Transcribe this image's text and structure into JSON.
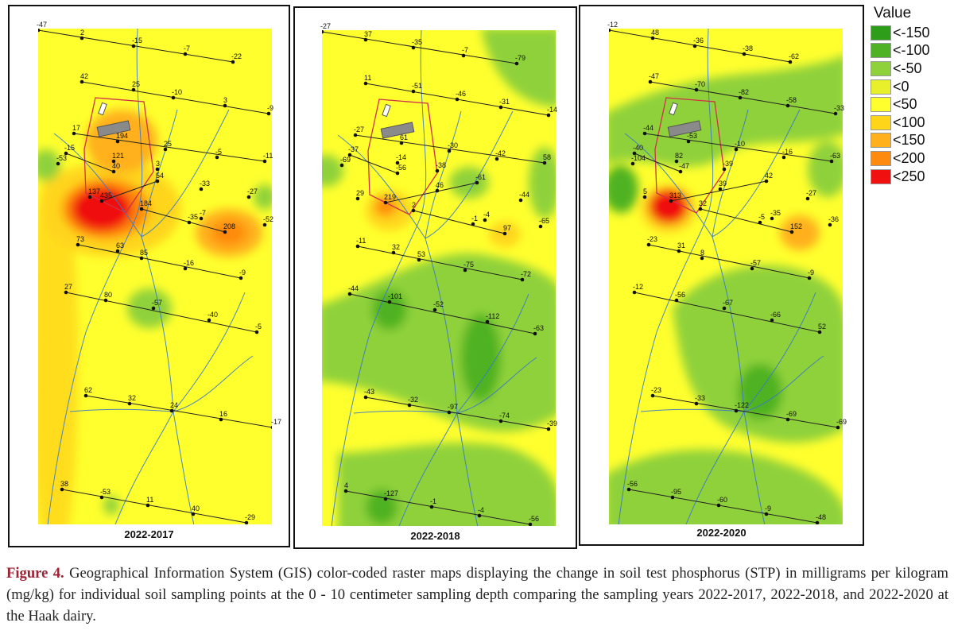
{
  "legend": {
    "title": "Value",
    "items": [
      {
        "label": "<-150",
        "color": "#2e9e1a"
      },
      {
        "label": "<-100",
        "color": "#4fb224"
      },
      {
        "label": "<-50",
        "color": "#8fd13a"
      },
      {
        "label": "<0",
        "color": "#e8f02c"
      },
      {
        "label": "<50",
        "color": "#ffff2e"
      },
      {
        "label": "<100",
        "color": "#ffd51a"
      },
      {
        "label": "<150",
        "color": "#ffb01a"
      },
      {
        "label": "<200",
        "color": "#ff8a10"
      },
      {
        "label": "<250",
        "color": "#f01010"
      }
    ]
  },
  "caption": {
    "figure_label": "Figure 4.",
    "text": "Geographical Information System (GIS) color-coded raster maps displaying the change in soil test phosphorus (STP) in milligrams per kilogram (mg/kg) for individual soil sampling points at the 0 - 10 centimeter sampling depth comparing the sampling years 2022-2017, 2022-2018, and 2022-2020 at the Haak dairy."
  },
  "maps": [
    {
      "title": "2022-2017",
      "points": [
        {
          "label": "-47"
        },
        {
          "label": "2"
        },
        {
          "label": "-15"
        },
        {
          "label": "-7"
        },
        {
          "label": "-22"
        },
        {
          "label": "42"
        },
        {
          "label": "25"
        },
        {
          "label": "-10"
        },
        {
          "label": "3"
        },
        {
          "label": "-9"
        },
        {
          "label": "17"
        },
        {
          "label": "194"
        },
        {
          "label": "25"
        },
        {
          "label": "-5"
        },
        {
          "label": "-11"
        },
        {
          "label": "-15"
        },
        {
          "label": "121"
        },
        {
          "label": "3"
        },
        {
          "label": "-53"
        },
        {
          "label": "40"
        },
        {
          "label": "54"
        },
        {
          "label": "-33"
        },
        {
          "label": "-27"
        },
        {
          "label": "137"
        },
        {
          "label": "435"
        },
        {
          "label": "184"
        },
        {
          "label": "-7"
        },
        {
          "label": "-52"
        },
        {
          "label": "-35"
        },
        {
          "label": "208"
        },
        {
          "label": "73"
        },
        {
          "label": "63"
        },
        {
          "label": "85"
        },
        {
          "label": "-16"
        },
        {
          "label": "-9"
        },
        {
          "label": "27"
        },
        {
          "label": "80"
        },
        {
          "label": "-57"
        },
        {
          "label": "-40"
        },
        {
          "label": "-5"
        },
        {
          "label": "62"
        },
        {
          "label": "32"
        },
        {
          "label": "24"
        },
        {
          "label": "16"
        },
        {
          "label": "-17"
        },
        {
          "label": "38"
        },
        {
          "label": "-53"
        },
        {
          "label": "11"
        },
        {
          "label": "40"
        },
        {
          "label": "-29"
        }
      ]
    },
    {
      "title": "2022-2018",
      "points": [
        {
          "label": "-27"
        },
        {
          "label": "37"
        },
        {
          "label": "-35"
        },
        {
          "label": "-7"
        },
        {
          "label": "-79"
        },
        {
          "label": "11"
        },
        {
          "label": "-51"
        },
        {
          "label": "-46"
        },
        {
          "label": "-31"
        },
        {
          "label": "-14"
        },
        {
          "label": "-27"
        },
        {
          "label": "61"
        },
        {
          "label": "-30"
        },
        {
          "label": "-42"
        },
        {
          "label": "58"
        },
        {
          "label": "-37"
        },
        {
          "label": "-14"
        },
        {
          "label": "-38"
        },
        {
          "label": "-69"
        },
        {
          "label": "-56"
        },
        {
          "label": "-61"
        },
        {
          "label": "46"
        },
        {
          "label": "-44"
        },
        {
          "label": "29"
        },
        {
          "label": "219"
        },
        {
          "label": "2"
        },
        {
          "label": "-4"
        },
        {
          "label": "-65"
        },
        {
          "label": "-1"
        },
        {
          "label": "97"
        },
        {
          "label": "-11"
        },
        {
          "label": "32"
        },
        {
          "label": "53"
        },
        {
          "label": "-75"
        },
        {
          "label": "-72"
        },
        {
          "label": "-44"
        },
        {
          "label": "-101"
        },
        {
          "label": "-52"
        },
        {
          "label": "-112"
        },
        {
          "label": "-63"
        },
        {
          "label": "-43"
        },
        {
          "label": "-32"
        },
        {
          "label": "-97"
        },
        {
          "label": "-74"
        },
        {
          "label": "-39"
        },
        {
          "label": "4"
        },
        {
          "label": "-127"
        },
        {
          "label": "-1"
        },
        {
          "label": "-4"
        },
        {
          "label": "-56"
        }
      ]
    },
    {
      "title": "2022-2020",
      "points": [
        {
          "label": "-12"
        },
        {
          "label": "48"
        },
        {
          "label": "-36"
        },
        {
          "label": "-38"
        },
        {
          "label": "-62"
        },
        {
          "label": "-47"
        },
        {
          "label": "-70"
        },
        {
          "label": "-82"
        },
        {
          "label": "-58"
        },
        {
          "label": "-33"
        },
        {
          "label": "-44"
        },
        {
          "label": "-53"
        },
        {
          "label": "-10"
        },
        {
          "label": "-16"
        },
        {
          "label": "-63"
        },
        {
          "label": "-40"
        },
        {
          "label": "82"
        },
        {
          "label": "-39"
        },
        {
          "label": "-104"
        },
        {
          "label": "-47"
        },
        {
          "label": "42"
        },
        {
          "label": "39"
        },
        {
          "label": "-27"
        },
        {
          "label": "5"
        },
        {
          "label": "313"
        },
        {
          "label": "32"
        },
        {
          "label": "-35"
        },
        {
          "label": "-36"
        },
        {
          "label": "-5"
        },
        {
          "label": "152"
        },
        {
          "label": "-23"
        },
        {
          "label": "31"
        },
        {
          "label": "8"
        },
        {
          "label": "-57"
        },
        {
          "label": "-9"
        },
        {
          "label": "-12"
        },
        {
          "label": "-56"
        },
        {
          "label": "-67"
        },
        {
          "label": "-66"
        },
        {
          "label": "52"
        },
        {
          "label": "-23"
        },
        {
          "label": "-33"
        },
        {
          "label": "-122"
        },
        {
          "label": "-69"
        },
        {
          "label": "-69"
        },
        {
          "label": "-56"
        },
        {
          "label": "-95"
        },
        {
          "label": "-60"
        },
        {
          "label": "-9"
        },
        {
          "label": "-48"
        }
      ]
    }
  ]
}
